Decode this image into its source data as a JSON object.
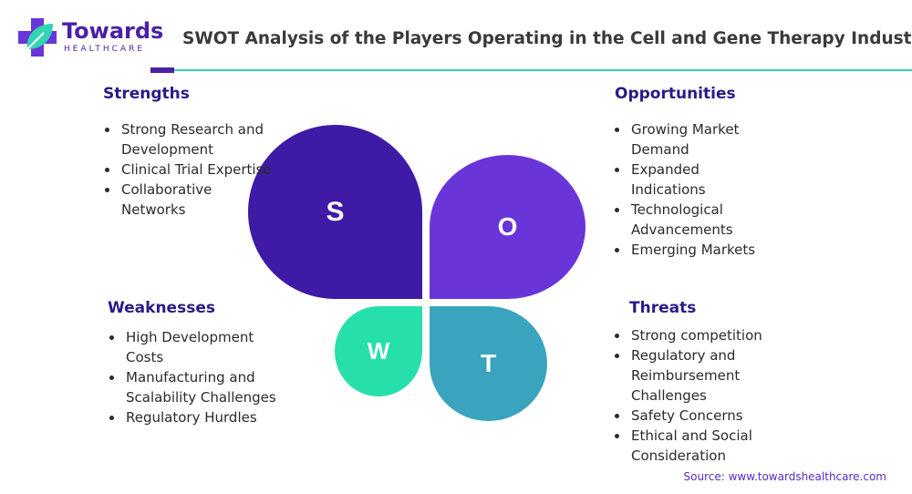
{
  "header": {
    "logo_name": "Towards",
    "logo_sub": "HEALTHCARE",
    "title": "SWOT Analysis of the Players Operating in the Cell and Gene Therapy Industry"
  },
  "quadrants": {
    "strengths": {
      "title": "Strengths",
      "letter": "S",
      "items": [
        "Strong Research and Development",
        "Clinical Trial Expertise",
        "Collaborative Networks"
      ]
    },
    "opportunities": {
      "title": "Opportunities",
      "letter": "O",
      "items": [
        "Growing Market Demand",
        "Expanded Indications",
        "Technological Advancements",
        "Emerging Markets"
      ]
    },
    "weaknesses": {
      "title": "Weaknesses",
      "letter": "W",
      "items": [
        "High Development Costs",
        "Manufacturing and Scalability Challenges",
        "Regulatory Hurdles"
      ]
    },
    "threats": {
      "title": "Threats",
      "letter": "T",
      "items": [
        "Strong competition",
        "Regulatory and Reimbursement Challenges",
        "Safety Concerns",
        "Ethical and Social Consideration"
      ]
    }
  },
  "source": "Source: www.towardshealthcare.com"
}
